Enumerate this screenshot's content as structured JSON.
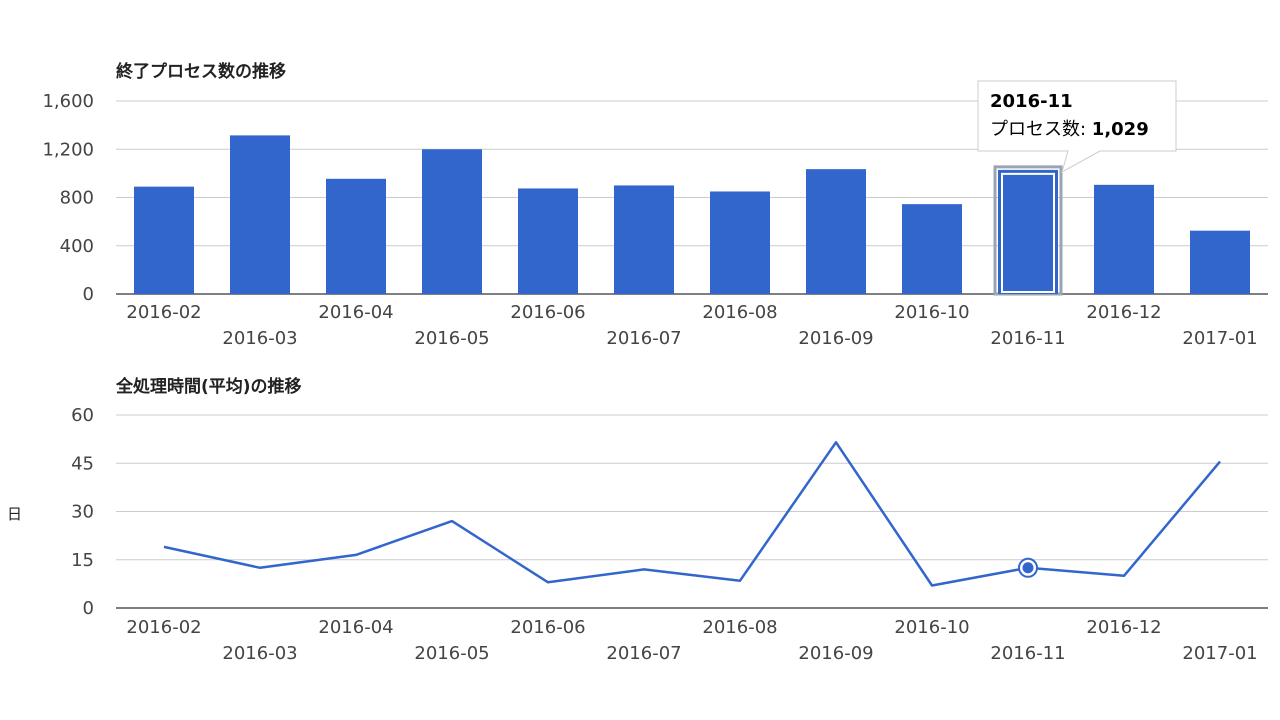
{
  "chart_data": [
    {
      "type": "bar",
      "title": "終了プロセス数の推移",
      "xlabel": "",
      "ylabel": "",
      "categories": [
        "2016-02",
        "2016-03",
        "2016-04",
        "2016-05",
        "2016-06",
        "2016-07",
        "2016-08",
        "2016-09",
        "2016-10",
        "2016-11",
        "2016-12",
        "2017-01"
      ],
      "series": [
        {
          "values": [
            890,
            1315,
            955,
            1200,
            875,
            900,
            850,
            1035,
            745,
            1029,
            905,
            525
          ]
        }
      ],
      "ylim": [
        0,
        1600
      ],
      "yticks": [
        0,
        400,
        800,
        1200,
        1600
      ],
      "ytick_labels": [
        "0",
        "400",
        "800",
        "1,200",
        "1,600"
      ],
      "grid": true,
      "legend": "none",
      "color": "#3366cc",
      "highlighted": "2016-11",
      "tooltip": {
        "date": "2016-11",
        "label": "プロセス数: ",
        "value": "1,029"
      }
    },
    {
      "type": "line",
      "title": "全処理時間(平均)の推移",
      "xlabel": "",
      "ylabel": "日",
      "categories": [
        "2016-02",
        "2016-03",
        "2016-04",
        "2016-05",
        "2016-06",
        "2016-07",
        "2016-08",
        "2016-09",
        "2016-10",
        "2016-11",
        "2016-12",
        "2017-01"
      ],
      "series": [
        {
          "values": [
            19,
            12.5,
            16.5,
            27,
            8,
            12,
            8.5,
            51.5,
            7,
            12.5,
            10,
            45.5
          ]
        }
      ],
      "ylim": [
        0,
        60
      ],
      "yticks": [
        0,
        15,
        30,
        45,
        60
      ],
      "ytick_labels": [
        "0",
        "15",
        "30",
        "45",
        "60"
      ],
      "grid": true,
      "legend": "none",
      "color": "#3366cc",
      "highlighted": "2016-11"
    }
  ]
}
